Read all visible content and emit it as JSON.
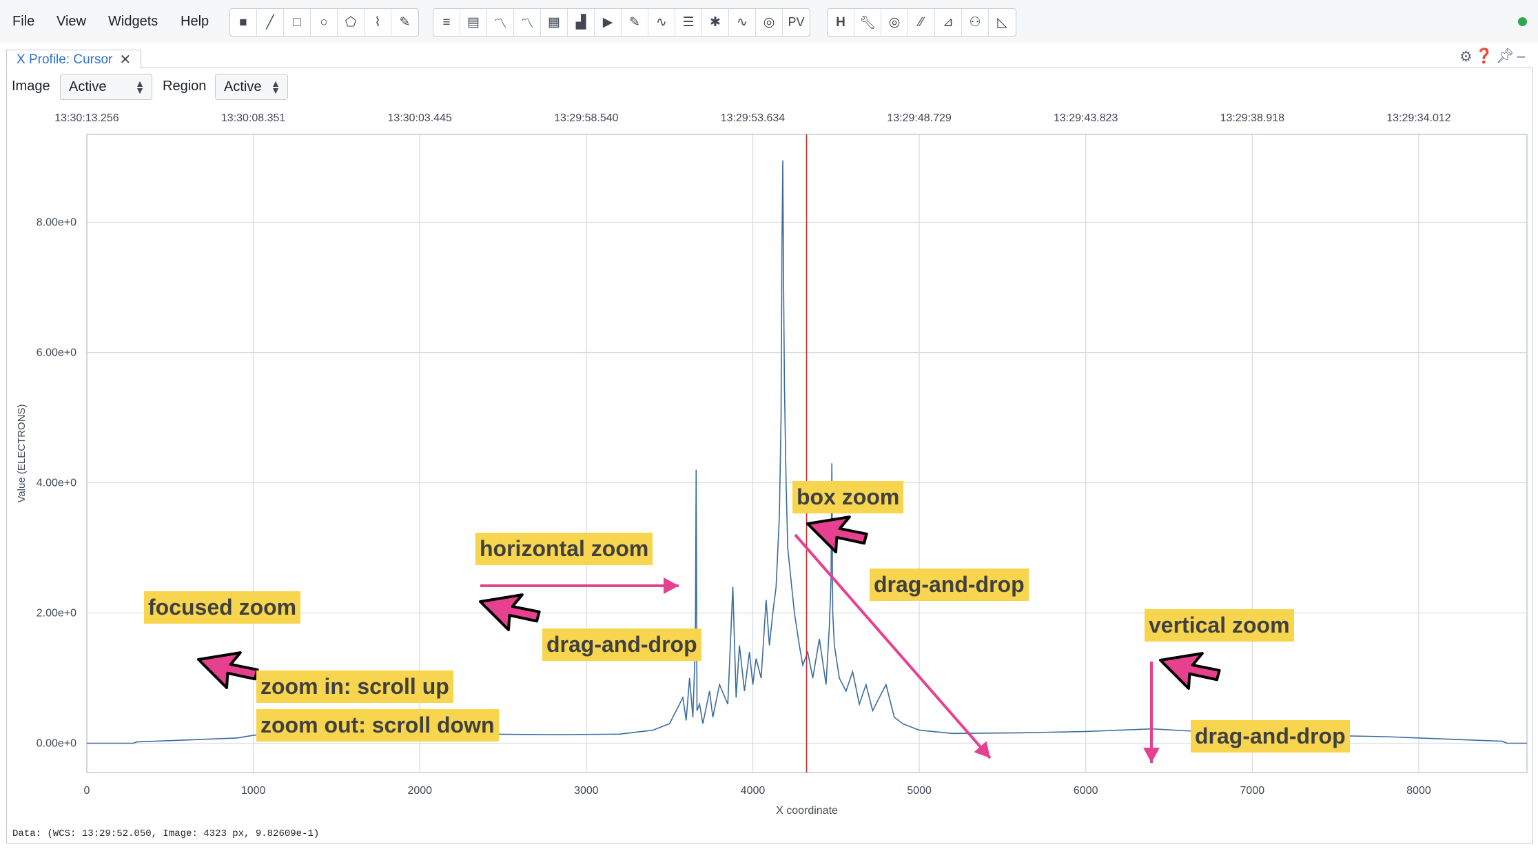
{
  "menu": [
    "File",
    "View",
    "Widgets",
    "Help"
  ],
  "toolbar": {
    "region_tools": [
      "point-icon",
      "line-icon",
      "rectangle-icon",
      "ellipse-icon",
      "polygon-icon",
      "polyline-icon",
      "annotation-icon"
    ],
    "widget_tools": [
      "log-icon",
      "file-header-icon",
      "spatial-profiler-icon",
      "spectral-profiler-icon",
      "statistics-icon",
      "histogram-icon",
      "animator-icon",
      "render-config-icon",
      "stokes-icon",
      "layer-list-icon",
      "catalog-icon",
      "spectral-line-query-icon",
      "fitting-icon",
      "pv-generator-icon"
    ],
    "pv_label": "PV",
    "right_tools": [
      "hips-icon",
      "wrench-icon",
      "contour-icon",
      "vector-overlay-icon",
      "image-fitting-icon",
      "channel-map-icon",
      "distance-measure-icon"
    ]
  },
  "widget": {
    "tab_title": "X Profile: Cursor",
    "image_label": "Image",
    "image_value": "Active",
    "region_label": "Region",
    "region_value": "Active",
    "footer": "Data: (WCS: 13:29:52.050, Image: 4323 px, 9.82609e-1)"
  },
  "chart_data": {
    "type": "line",
    "xlabel": "X coordinate",
    "ylabel": "Value (ELECTRONS)",
    "xlim": [
      0,
      8650
    ],
    "ylim": [
      -0.45,
      9.35
    ],
    "x_ticks": [
      0,
      1000,
      2000,
      3000,
      4000,
      5000,
      6000,
      7000,
      8000
    ],
    "x_tick_labels": [
      "0",
      "1000",
      "2000",
      "3000",
      "4000",
      "5000",
      "6000",
      "7000",
      "8000"
    ],
    "y_ticks": [
      0,
      2,
      4,
      6,
      8
    ],
    "y_tick_labels": [
      "0.00e+0",
      "2.00e+0",
      "4.00e+0",
      "6.00e+0",
      "8.00e+0"
    ],
    "top_axis_ticks": [
      0,
      1000,
      2000,
      3000,
      4000,
      5000,
      6000,
      7000,
      8000
    ],
    "top_axis_labels": [
      "13:30:13.256",
      "13:30:08.351",
      "13:30:03.445",
      "13:29:58.540",
      "13:29:53.634",
      "13:29:48.729",
      "13:29:43.823",
      "13:29:38.918",
      "13:29:34.012"
    ],
    "cursor_x": 4323,
    "line_color": "#3b6c9c",
    "cursor_color": "#c23030",
    "series": [
      {
        "x": [
          0,
          280,
          300,
          600,
          900,
          1000,
          1200,
          1600,
          2000,
          2400,
          2800,
          3200,
          3400,
          3500,
          3580,
          3600,
          3620,
          3640,
          3655,
          3660,
          3665,
          3680,
          3700,
          3740,
          3760,
          3800,
          3850,
          3880,
          3900,
          3920,
          3950,
          3980,
          4000,
          4020,
          4050,
          4080,
          4100,
          4120,
          4140,
          4160,
          4170,
          4175,
          4180,
          4185,
          4190,
          4200,
          4210,
          4230,
          4250,
          4280,
          4300,
          4330,
          4360,
          4400,
          4440,
          4460,
          4470,
          4475,
          4480,
          4490,
          4520,
          4560,
          4600,
          4640,
          4680,
          4720,
          4760,
          4800,
          4850,
          4900,
          5000,
          5200,
          5600,
          6000,
          6200,
          6400,
          6600,
          7000,
          7400,
          7800,
          8200,
          8500,
          8530,
          8650
        ],
        "y": [
          0,
          0,
          0.02,
          0.05,
          0.08,
          0.12,
          0.18,
          0.17,
          0.15,
          0.14,
          0.13,
          0.14,
          0.2,
          0.3,
          0.7,
          0.35,
          1.0,
          0.4,
          1.5,
          4.2,
          0.5,
          0.6,
          0.3,
          0.8,
          0.4,
          0.9,
          0.6,
          2.4,
          0.7,
          1.5,
          0.8,
          1.4,
          0.9,
          1.3,
          1.0,
          2.2,
          1.5,
          2.0,
          2.4,
          3.5,
          5.0,
          7.6,
          8.95,
          7.0,
          5.5,
          4.0,
          3.0,
          2.5,
          2.0,
          1.5,
          1.2,
          1.4,
          1.0,
          1.6,
          0.9,
          1.8,
          2.5,
          4.3,
          2.0,
          1.5,
          1.0,
          0.8,
          1.1,
          0.6,
          0.9,
          0.5,
          0.7,
          0.9,
          0.4,
          0.3,
          0.2,
          0.15,
          0.16,
          0.18,
          0.2,
          0.22,
          0.19,
          0.15,
          0.12,
          0.1,
          0.06,
          0.03,
          0,
          0
        ]
      }
    ]
  },
  "annotations": {
    "focused_zoom": "focused zoom",
    "zoom_in": "zoom in: scroll up",
    "zoom_out": "zoom out: scroll down",
    "horizontal_zoom": "horizontal zoom",
    "drag_and_drop": "drag-and-drop",
    "box_zoom": "box zoom",
    "vertical_zoom": "vertical zoom",
    "annotation_color": "#e6408f",
    "label_bg": "#f7d54e"
  }
}
